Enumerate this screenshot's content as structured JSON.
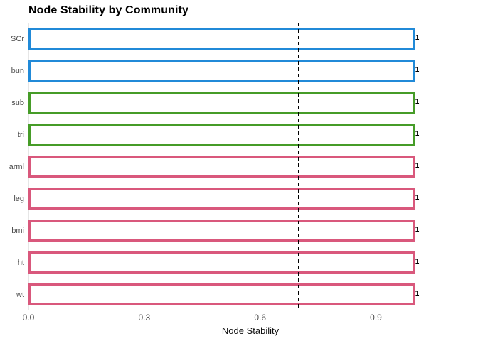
{
  "chart_data": {
    "type": "bar",
    "orientation": "horizontal",
    "title": "Node Stability by Community",
    "xlabel": "Node Stability",
    "ylabel": "",
    "categories": [
      "SCr",
      "bun",
      "sub",
      "tri",
      "arml",
      "leg",
      "bmi",
      "ht",
      "wt"
    ],
    "values": [
      1,
      1,
      1,
      1,
      1,
      1,
      1,
      1,
      1
    ],
    "value_labels": [
      "1",
      "1",
      "1",
      "1",
      "1",
      "1",
      "1",
      "1",
      "1"
    ],
    "communities": [
      "blue",
      "blue",
      "green",
      "green",
      "pink",
      "pink",
      "pink",
      "pink",
      "pink"
    ],
    "community_colors": {
      "blue": "#218AD8",
      "green": "#469C28",
      "pink": "#D9587C"
    },
    "bar_fill": "#FFFFFF",
    "x_ticks": [
      0.0,
      0.3,
      0.6,
      0.9
    ],
    "x_tick_labels": [
      "0.0",
      "0.3",
      "0.6",
      "0.9"
    ],
    "xlim": [
      0,
      1.05
    ],
    "reference_line": {
      "value": 0.7,
      "style": "dashed",
      "color": "#000000"
    },
    "grid": "vertical-major",
    "grid_color": "#E6E6E6",
    "legend": "none",
    "background": "#FFFFFF"
  }
}
